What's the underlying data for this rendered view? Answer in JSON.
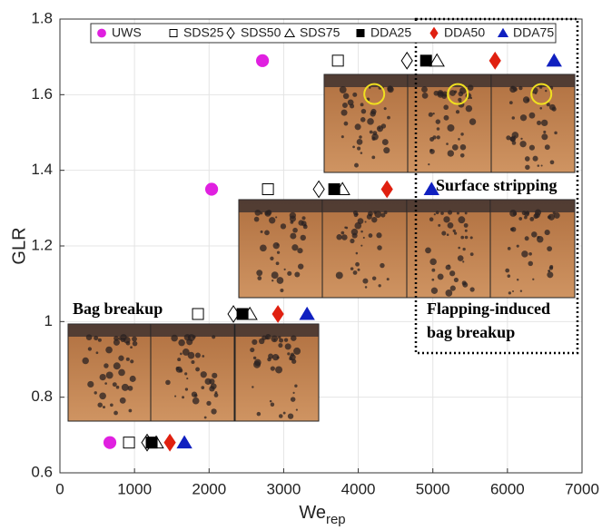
{
  "chart_data": {
    "type": "scatter",
    "xlabel": {
      "text": "We",
      "subscript": "rep"
    },
    "ylabel": "GLR",
    "xlim": [
      0,
      7000
    ],
    "xticks": [
      0,
      1000,
      2000,
      3000,
      4000,
      5000,
      6000,
      7000
    ],
    "ylim": [
      0.6,
      1.8
    ],
    "yticks": [
      0.6,
      0.8,
      1,
      1.2,
      1.4,
      1.6,
      1.8
    ],
    "grid": true,
    "legend": "top",
    "series": [
      {
        "name": "UWS",
        "color": "#e020e0",
        "marker": "circle",
        "filled": true,
        "x": [
          670,
          2034,
          2716
        ],
        "y": [
          0.68,
          1.35,
          1.69
        ]
      },
      {
        "name": "SDS25",
        "color": "#000000",
        "marker": "square",
        "filled": false,
        "x": [
          926,
          1851,
          2789,
          3727
        ],
        "y": [
          0.68,
          1.02,
          1.35,
          1.69
        ]
      },
      {
        "name": "SDS50",
        "color": "#000000",
        "marker": "diamond",
        "filled": false,
        "x": [
          1169,
          2326,
          3471,
          4653
        ],
        "y": [
          0.68,
          1.02,
          1.35,
          1.69
        ]
      },
      {
        "name": "SDS75",
        "color": "#000000",
        "marker": "triangle",
        "filled": false,
        "x": [
          1291,
          2546,
          3788,
          5055
        ],
        "y": [
          0.68,
          1.02,
          1.35,
          1.69
        ]
      },
      {
        "name": "DDA25",
        "color": "#000000",
        "marker": "square",
        "filled": true,
        "x": [
          1230,
          2448,
          3678,
          4909
        ],
        "y": [
          0.68,
          1.02,
          1.35,
          1.69
        ]
      },
      {
        "name": "DDA50",
        "color": "#e02010",
        "marker": "diamond",
        "filled": true,
        "x": [
          1474,
          2923,
          4385,
          5834
        ],
        "y": [
          0.68,
          1.02,
          1.35,
          1.69
        ]
      },
      {
        "name": "DDA75",
        "color": "#1020c0",
        "marker": "triangle",
        "filled": true,
        "x": [
          1669,
          3313,
          4982,
          6626
        ],
        "y": [
          0.68,
          1.02,
          1.35,
          1.69
        ]
      }
    ],
    "annotations": [
      "Bag breakup",
      "Surface stripping",
      "Flapping-induced",
      "bag breakup"
    ]
  }
}
